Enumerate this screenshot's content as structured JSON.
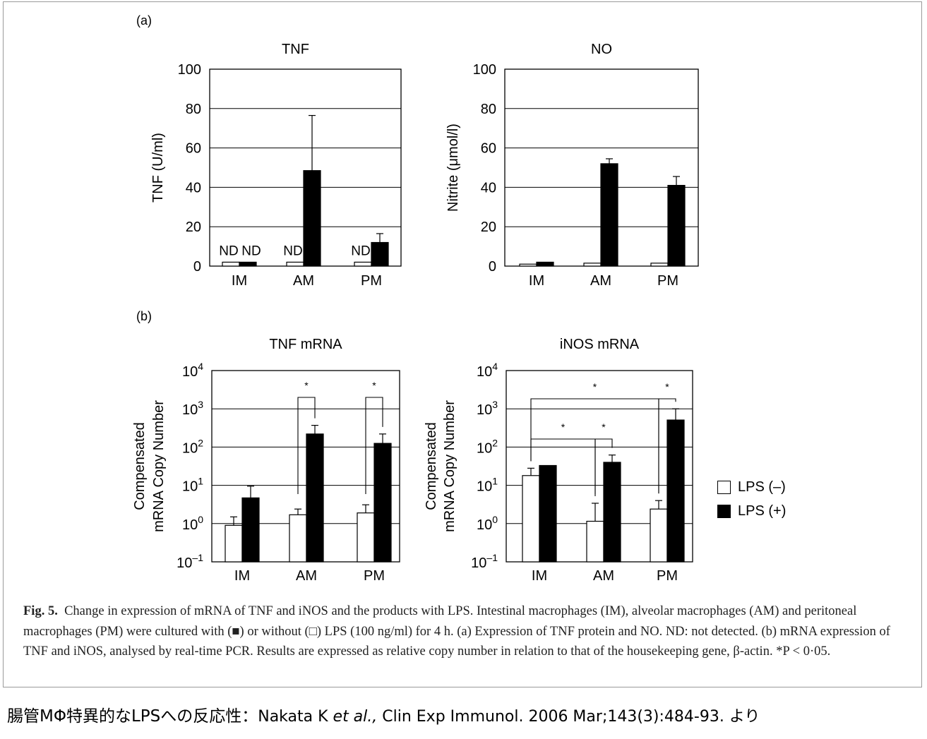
{
  "panel_labels": {
    "a": "(a)",
    "b": "(b)"
  },
  "legend": {
    "items": [
      {
        "label": "LPS (–)",
        "color": "#ffffff"
      },
      {
        "label": "LPS (+)",
        "color": "#000000"
      }
    ]
  },
  "caption": {
    "fig_label": "Fig. 5.",
    "text": "Change in expression of mRNA of TNF and iNOS and the products with LPS. Intestinal macrophages (IM), alveolar macrophages (AM) and peritoneal macrophages (PM) were cultured with (■) or without (□) LPS (100 ng/ml) for 4 h. (a) Expression of TNF protein and NO. ND: not detected. (b) mRNA expression of TNF and iNOS, analysed by real-time PCR. Results are expressed as relative copy number in relation to that of the housekeeping gene, β-actin. *P < 0·05."
  },
  "footer": {
    "jp_text": "腸管MΦ特異的なLPSへの反応性",
    "sep": "：",
    "authors": "Nakata K ",
    "etal": "et al.,",
    "citation": " Clin Exp Immunol. 2006 Mar;143(3):484-93. より"
  },
  "chart_data": [
    {
      "id": "tnf",
      "type": "bar",
      "title": "TNF",
      "ylabel": [
        "TNF (U/ml)"
      ],
      "ylim": [
        0,
        100
      ],
      "yscale": "linear",
      "yticks": [
        "0",
        "20",
        "40",
        "60",
        "80",
        "100"
      ],
      "grid": true,
      "categories": [
        "IM",
        "AM",
        "PM"
      ],
      "series": [
        {
          "name": "LPS (–)",
          "color": "#ffffff",
          "values": [
            2,
            2,
            2
          ],
          "errors": [
            0,
            0,
            0
          ]
        },
        {
          "name": "LPS (+)",
          "color": "#000000",
          "values": [
            2,
            48.5,
            12
          ],
          "errors": [
            0,
            28,
            4.5
          ]
        }
      ],
      "annotations": [
        {
          "category": "IM",
          "series": 0,
          "text": "ND"
        },
        {
          "category": "IM",
          "series": 1,
          "text": "ND"
        },
        {
          "category": "AM",
          "series": 0,
          "text": "ND"
        },
        {
          "category": "PM",
          "series": 0,
          "text": "ND"
        }
      ]
    },
    {
      "id": "no",
      "type": "bar",
      "title": "NO",
      "ylabel": [
        "Nitrite (μmol/l)"
      ],
      "ylim": [
        0,
        100
      ],
      "yscale": "linear",
      "yticks": [
        "0",
        "20",
        "40",
        "60",
        "80",
        "100"
      ],
      "grid": true,
      "categories": [
        "IM",
        "AM",
        "PM"
      ],
      "series": [
        {
          "name": "LPS (–)",
          "color": "#ffffff",
          "values": [
            1,
            1.5,
            1.5
          ],
          "errors": [
            0,
            0,
            0
          ]
        },
        {
          "name": "LPS (+)",
          "color": "#000000",
          "values": [
            2,
            52,
            41
          ],
          "errors": [
            0,
            2.5,
            4.5
          ]
        }
      ]
    },
    {
      "id": "tnf-mrna",
      "type": "bar",
      "title": "TNF mRNA",
      "ylabel": [
        "Compensated",
        "mRNA Copy Number"
      ],
      "ylim": [
        0.1,
        10000
      ],
      "yscale": "log",
      "yticks": [
        {
          "base": "10",
          "exp": "–1"
        },
        {
          "base": "10",
          "exp": "0"
        },
        {
          "base": "10",
          "exp": "1"
        },
        {
          "base": "10",
          "exp": "2"
        },
        {
          "base": "10",
          "exp": "3"
        },
        {
          "base": "10",
          "exp": "4"
        }
      ],
      "grid": true,
      "categories": [
        "IM",
        "AM",
        "PM"
      ],
      "series": [
        {
          "name": "LPS (–)",
          "color": "#ffffff",
          "values": [
            0.9,
            1.7,
            1.9
          ],
          "err_high": [
            1.5,
            2.4,
            3.1
          ]
        },
        {
          "name": "LPS (+)",
          "color": "#000000",
          "values": [
            4.7,
            220,
            125
          ],
          "err_high": [
            9.5,
            370,
            220
          ]
        }
      ],
      "significance": [
        {
          "from": [
            1,
            0
          ],
          "to": [
            1,
            1
          ],
          "text": "*"
        },
        {
          "from": [
            2,
            0
          ],
          "to": [
            2,
            1
          ],
          "text": "*"
        }
      ]
    },
    {
      "id": "inos-mrna",
      "type": "bar",
      "title": "iNOS mRNA",
      "ylabel": [
        "Compensated",
        "mRNA Copy Number"
      ],
      "ylim": [
        0.1,
        10000
      ],
      "yscale": "log",
      "yticks": [
        {
          "base": "10",
          "exp": "–1"
        },
        {
          "base": "10",
          "exp": "0"
        },
        {
          "base": "10",
          "exp": "1"
        },
        {
          "base": "10",
          "exp": "2"
        },
        {
          "base": "10",
          "exp": "3"
        },
        {
          "base": "10",
          "exp": "4"
        }
      ],
      "grid": true,
      "categories": [
        "IM",
        "AM",
        "PM"
      ],
      "series": [
        {
          "name": "LPS (–)",
          "color": "#ffffff",
          "values": [
            18,
            1.15,
            2.4
          ],
          "err_high": [
            28,
            3.4,
            4
          ]
        },
        {
          "name": "LPS (+)",
          "color": "#000000",
          "values": [
            33,
            40,
            510
          ],
          "err_high": [
            33,
            62,
            1000
          ]
        }
      ],
      "significance": [
        {
          "from": [
            0,
            0
          ],
          "to": [
            2,
            0
          ],
          "text": "*"
        },
        {
          "from": [
            2,
            0
          ],
          "to": [
            2,
            1
          ],
          "text": "*"
        },
        {
          "from": [
            0,
            0
          ],
          "to": [
            1,
            0
          ],
          "text": "*"
        },
        {
          "from": [
            1,
            0
          ],
          "to": [
            1,
            1
          ],
          "text": "*"
        }
      ]
    }
  ]
}
